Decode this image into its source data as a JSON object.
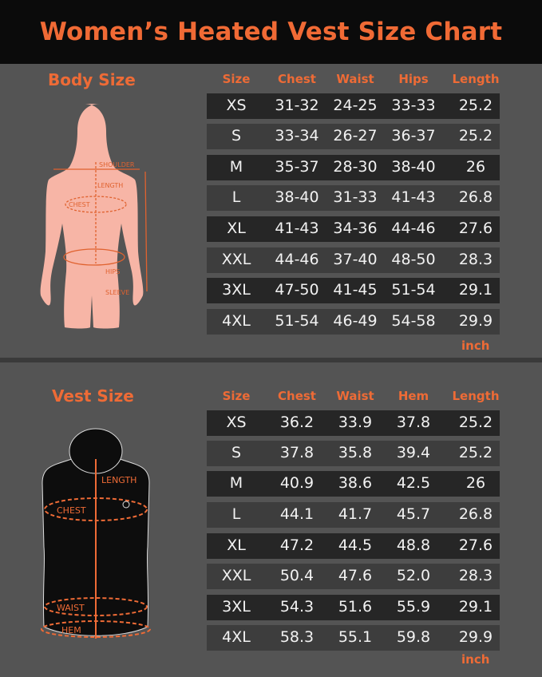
{
  "title": "Women’s Heated Vest Size Chart",
  "colors": {
    "accent": "#ee6b36",
    "title_bg": "#0b0b0b",
    "page_bg": "#545454",
    "row_dark": "#262626",
    "row_light": "#3d3d3d",
    "body_figure": "#f7b5a6"
  },
  "body": {
    "title": "Body Size",
    "headers": [
      "Size",
      "Chest",
      "Waist",
      "Hips",
      "Length"
    ],
    "rows": [
      [
        "XS",
        "31-32",
        "24-25",
        "33-33",
        "25.2"
      ],
      [
        "S",
        "33-34",
        "26-27",
        "36-37",
        "25.2"
      ],
      [
        "M",
        "35-37",
        "28-30",
        "38-40",
        "26"
      ],
      [
        "L",
        "38-40",
        "31-33",
        "41-43",
        "26.8"
      ],
      [
        "XL",
        "41-43",
        "34-36",
        "44-46",
        "27.6"
      ],
      [
        "XXL",
        "44-46",
        "37-40",
        "48-50",
        "28.3"
      ],
      [
        "3XL",
        "47-50",
        "41-45",
        "51-54",
        "29.1"
      ],
      [
        "4XL",
        "51-54",
        "46-49",
        "54-58",
        "29.9"
      ]
    ],
    "unit": "inch",
    "figure_labels": {
      "shoulder": "SHOULDER",
      "length": "LENGTH",
      "chest": "CHEST",
      "hips": "HIPS",
      "sleeve": "SLEEVE"
    }
  },
  "vest": {
    "title": "Vest Size",
    "headers": [
      "Size",
      "Chest",
      "Waist",
      "Hem",
      "Length"
    ],
    "rows": [
      [
        "XS",
        "36.2",
        "33.9",
        "37.8",
        "25.2"
      ],
      [
        "S",
        "37.8",
        "35.8",
        "39.4",
        "25.2"
      ],
      [
        "M",
        "40.9",
        "38.6",
        "42.5",
        "26"
      ],
      [
        "L",
        "44.1",
        "41.7",
        "45.7",
        "26.8"
      ],
      [
        "XL",
        "47.2",
        "44.5",
        "48.8",
        "27.6"
      ],
      [
        "XXL",
        "50.4",
        "47.6",
        "52.0",
        "28.3"
      ],
      [
        "3XL",
        "54.3",
        "51.6",
        "55.9",
        "29.1"
      ],
      [
        "4XL",
        "58.3",
        "55.1",
        "59.8",
        "29.9"
      ]
    ],
    "unit": "inch",
    "figure_labels": {
      "length": "LENGTH",
      "chest": "CHEST",
      "waist": "WAIST",
      "hem": "HEM"
    }
  }
}
